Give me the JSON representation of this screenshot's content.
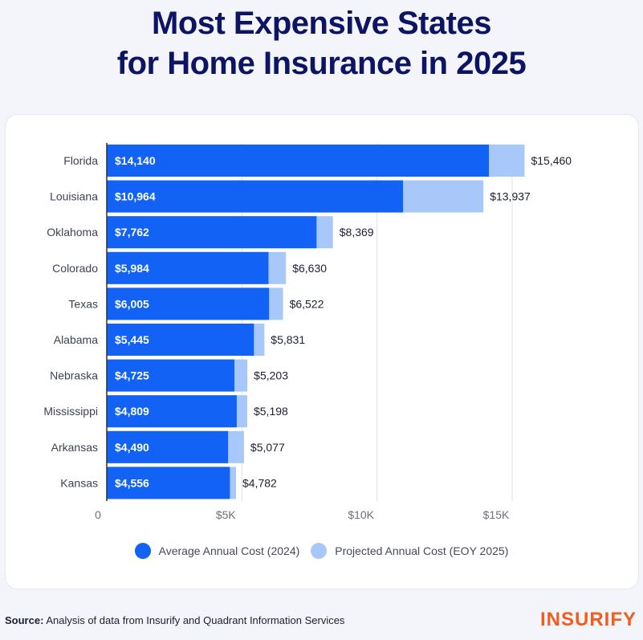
{
  "header": {
    "title_line1": "Most Expensive States",
    "title_line2": "for Home Insurance in 2025"
  },
  "legend": {
    "series1": "Average Annual Cost (2024)",
    "series2": "Projected Annual Cost (EOY 2025)"
  },
  "footer": {
    "source_label": "Source:",
    "source_text": "Analysis of data from Insurify and Quadrant Information Services"
  },
  "brand": {
    "logo_text": "INSURIFY",
    "logo_color": "#f25c1f"
  },
  "colors": {
    "title": "#0d1463",
    "series1": "#1162f5",
    "series2": "#a9c8fa",
    "panel_bg": "#ffffff",
    "page_bg": "#f3f5fa"
  },
  "chart_data": {
    "type": "bar",
    "orientation": "horizontal",
    "categories": [
      "Florida",
      "Louisiana",
      "Oklahoma",
      "Colorado",
      "Texas",
      "Alabama",
      "Nebraska",
      "Mississippi",
      "Arkansas",
      "Kansas"
    ],
    "series": [
      {
        "name": "Average Annual Cost (2024)",
        "values": [
          14140,
          10964,
          7762,
          5984,
          6005,
          5445,
          4725,
          4809,
          4490,
          4556
        ],
        "labels": [
          "$14,140",
          "$10,964",
          "$7,762",
          "$5,984",
          "$6,005",
          "$5,445",
          "$4,725",
          "$4,809",
          "$4,490",
          "$4,556"
        ]
      },
      {
        "name": "Projected Annual Cost (EOY 2025)",
        "values": [
          15460,
          13937,
          8369,
          6630,
          6522,
          5831,
          5203,
          5198,
          5077,
          4782
        ],
        "labels": [
          "$15,460",
          "$13,937",
          "$8,369",
          "$6,630",
          "$6,522",
          "$5,831",
          "$5,203",
          "$5,198",
          "$5,077",
          "$4,782"
        ]
      }
    ],
    "overlay": true,
    "xlim": [
      0,
      15500
    ],
    "xticks": [
      0,
      5000,
      10000,
      15000
    ],
    "xtick_labels": [
      "0",
      "$5K",
      "$10K",
      "$15K"
    ],
    "grid": true,
    "legend_position": "bottom"
  }
}
